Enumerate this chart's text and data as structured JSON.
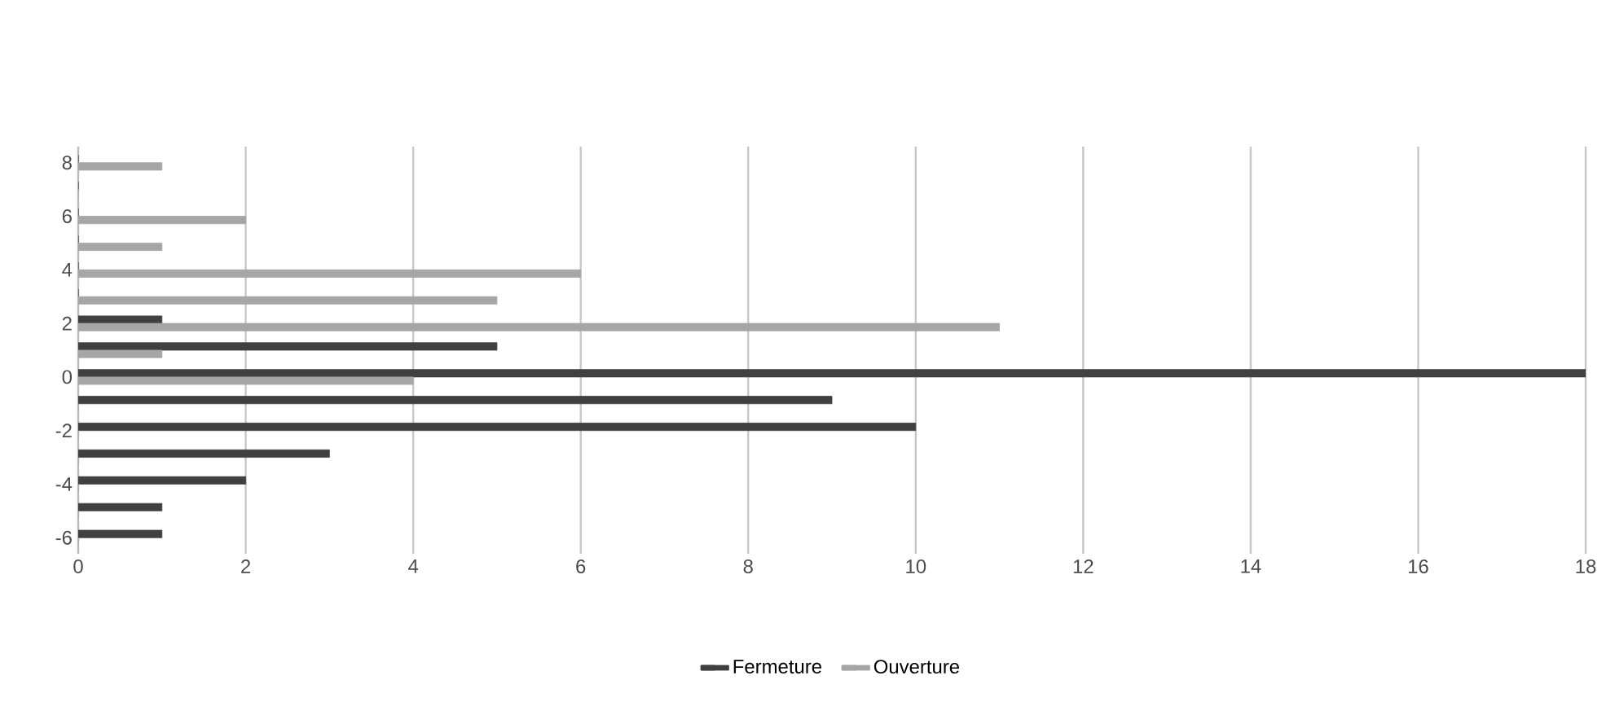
{
  "chart_data": {
    "type": "bar",
    "orientation": "horizontal",
    "categories": [
      "8",
      null,
      "6",
      null,
      "4",
      null,
      "2",
      null,
      "0",
      null,
      "-2",
      null,
      "-4",
      null,
      "-6"
    ],
    "series": [
      {
        "name": "Fermeture",
        "color": "#404040",
        "values": [
          0,
          0,
          0,
          0,
          0,
          0,
          1,
          5,
          18,
          9,
          10,
          3,
          2,
          1,
          1
        ]
      },
      {
        "name": "Ouverture",
        "color": "#a6a6a6",
        "values": [
          1,
          0,
          2,
          1,
          6,
          5,
          11,
          1,
          4,
          0,
          0,
          0,
          0,
          0,
          0
        ]
      }
    ],
    "xlim": [
      0,
      18
    ],
    "xticks": [
      0,
      2,
      4,
      6,
      8,
      10,
      12,
      14,
      16,
      18
    ],
    "grid": "x",
    "legend": "bottom"
  }
}
